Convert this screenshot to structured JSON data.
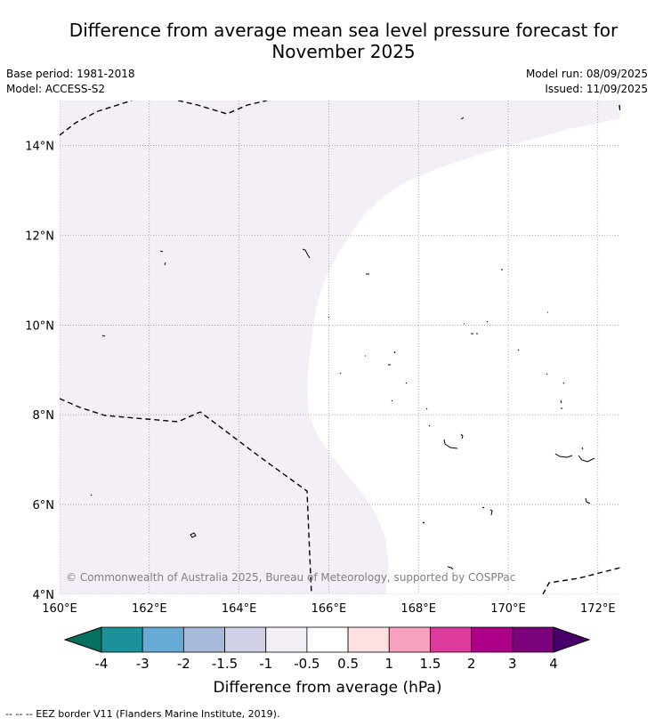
{
  "header": {
    "title_line1": "Difference from average mean sea level pressure forecast for",
    "title_line2": "November 2025",
    "base_period": "Base period: 1981-2018",
    "model": "Model: ACCESS-S2",
    "model_run": "Model run: 08/09/2025",
    "issued": "Issued: 11/09/2025"
  },
  "map": {
    "lon_range": [
      160,
      172.5
    ],
    "lat_range": [
      4,
      15
    ],
    "lon_ticks": [
      {
        "value": 160,
        "label": "160°E"
      },
      {
        "value": 162,
        "label": "162°E"
      },
      {
        "value": 164,
        "label": "164°E"
      },
      {
        "value": 166,
        "label": "166°E"
      },
      {
        "value": 168,
        "label": "168°E"
      },
      {
        "value": 170,
        "label": "170°E"
      },
      {
        "value": 172,
        "label": "172°E"
      }
    ],
    "lat_ticks": [
      {
        "value": 4,
        "label": "4°N"
      },
      {
        "value": 6,
        "label": "6°N"
      },
      {
        "value": 8,
        "label": "8°N"
      },
      {
        "value": 10,
        "label": "10°N"
      },
      {
        "value": 12,
        "label": "12°N"
      },
      {
        "value": 14,
        "label": "14°N"
      }
    ],
    "fill_color": "#f4eef6",
    "copyright": "© Commonwealth of Australia 2025, Bureau of Meteorology, supported by COSPPac"
  },
  "colorbar": {
    "title": "Difference from average (hPa)",
    "tick_labels": [
      "-4",
      "-3",
      "-2",
      "-1.5",
      "-1",
      "-0.5",
      "0.5",
      "1",
      "1.5",
      "2",
      "3",
      "4"
    ],
    "under_color": "#05705e",
    "over_color": "#4a006a",
    "colors": [
      "#1b9199",
      "#68abd7",
      "#a8bbdc",
      "#d0d0e6",
      "#f4eef6",
      "#ffffff",
      "#fde0df",
      "#f8a1be",
      "#dd3b9c",
      "#ac0188",
      "#7b017a"
    ]
  },
  "footer": {
    "legend": "--  --  -- EEZ border V11 (Flanders Marine Institute, 2019)."
  }
}
